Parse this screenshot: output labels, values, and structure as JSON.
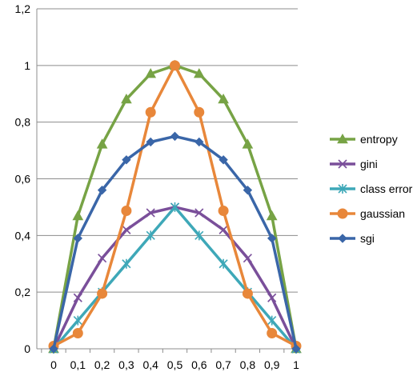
{
  "chart_data": {
    "type": "line",
    "title": "",
    "xlabel": "",
    "ylabel": "",
    "x": [
      "0",
      "0,1",
      "0,2",
      "0,3",
      "0,4",
      "0,5",
      "0,6",
      "0,7",
      "0,8",
      "0,9",
      "1"
    ],
    "y_ticks": [
      "0",
      "0,2",
      "0,4",
      "0,6",
      "0,8",
      "1",
      "1,2"
    ],
    "ylim": [
      0,
      1.2
    ],
    "grid": "horizontal",
    "legend": "right",
    "series": [
      {
        "name": "entropy",
        "color": "#77a345",
        "marker": "triangle",
        "values": [
          0,
          0.469,
          0.722,
          0.881,
          0.971,
          1.0,
          0.971,
          0.881,
          0.722,
          0.469,
          0
        ]
      },
      {
        "name": "gini",
        "color": "#7a4f9a",
        "marker": "x",
        "values": [
          0,
          0.18,
          0.32,
          0.42,
          0.48,
          0.5,
          0.48,
          0.42,
          0.32,
          0.18,
          0
        ]
      },
      {
        "name": "class error",
        "color": "#3ea8b8",
        "marker": "star",
        "values": [
          0,
          0.1,
          0.2,
          0.3,
          0.4,
          0.5,
          0.4,
          0.3,
          0.2,
          0.1,
          0
        ]
      },
      {
        "name": "gaussian",
        "color": "#e8873a",
        "marker": "circle",
        "values": [
          0.01,
          0.055,
          0.195,
          0.487,
          0.835,
          1.0,
          0.835,
          0.487,
          0.195,
          0.055,
          0.01
        ]
      },
      {
        "name": "sgi",
        "color": "#3a66a8",
        "marker": "diamond",
        "values": [
          0,
          0.39,
          0.56,
          0.667,
          0.73,
          0.75,
          0.73,
          0.667,
          0.56,
          0.39,
          0
        ]
      }
    ]
  }
}
